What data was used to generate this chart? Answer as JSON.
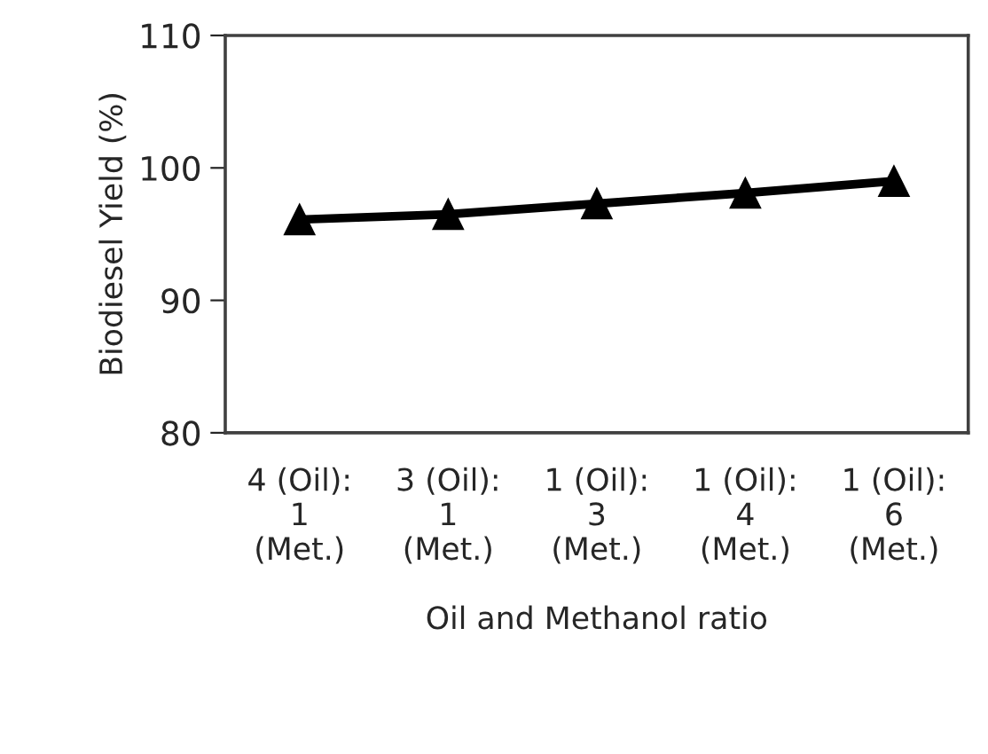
{
  "chart_data": {
    "type": "line",
    "xlabel": "Oil and Methanol ratio",
    "ylabel": "Biodiesel Yield (%)",
    "categories": [
      "4 (Oil):\n1\n(Met.)",
      "3 (Oil):\n1\n(Met.)",
      "1 (Oil):\n3\n(Met.)",
      "1 (Oil):\n4\n(Met.)",
      "1 (Oil):\n6\n(Met.)"
    ],
    "series": [
      {
        "color": "#000000",
        "values": [
          96.1,
          96.5,
          97.3,
          98.1,
          99.0
        ]
      }
    ],
    "ylim": [
      80,
      110
    ],
    "yticks": [
      80,
      90,
      100,
      110
    ],
    "grid": false,
    "marker": "triangle",
    "line_style": "solid"
  }
}
